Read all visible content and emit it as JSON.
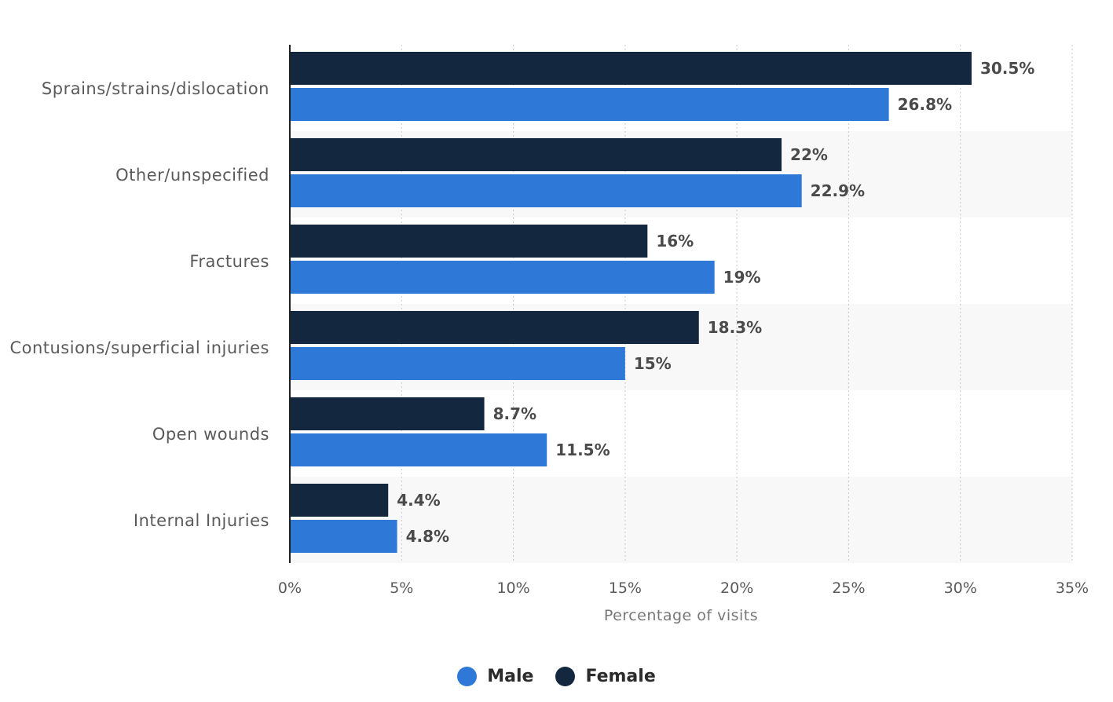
{
  "chart_data": {
    "type": "bar",
    "orientation": "horizontal",
    "categories": [
      "Sprains/strains/dislocation",
      "Other/unspecified",
      "Fractures",
      "Contusions/superficial injuries",
      "Open wounds",
      "Internal Injuries"
    ],
    "series": [
      {
        "name": "Female",
        "color": "#13273f",
        "values": [
          30.5,
          22,
          16,
          18.3,
          8.7,
          4.4
        ],
        "labels": [
          "30.5%",
          "22%",
          "16%",
          "18.3%",
          "8.7%",
          "4.4%"
        ]
      },
      {
        "name": "Male",
        "color": "#2e78d8",
        "values": [
          26.8,
          22.9,
          19,
          15,
          11.5,
          4.8
        ],
        "labels": [
          "26.8%",
          "22.9%",
          "19%",
          "15%",
          "11.5%",
          "4.8%"
        ]
      }
    ],
    "xlim": [
      0,
      35
    ],
    "ticks": [
      0,
      5,
      10,
      15,
      20,
      25,
      30,
      35
    ],
    "tick_labels": [
      "0%",
      "5%",
      "10%",
      "15%",
      "20%",
      "25%",
      "30%",
      "35%"
    ],
    "xlabel": "Percentage of visits",
    "grid": "vertical dotted",
    "legend_position": "bottom-center"
  },
  "legend": {
    "items": [
      {
        "label": "Male",
        "color": "#2e78d8"
      },
      {
        "label": "Female",
        "color": "#13273f"
      }
    ]
  }
}
